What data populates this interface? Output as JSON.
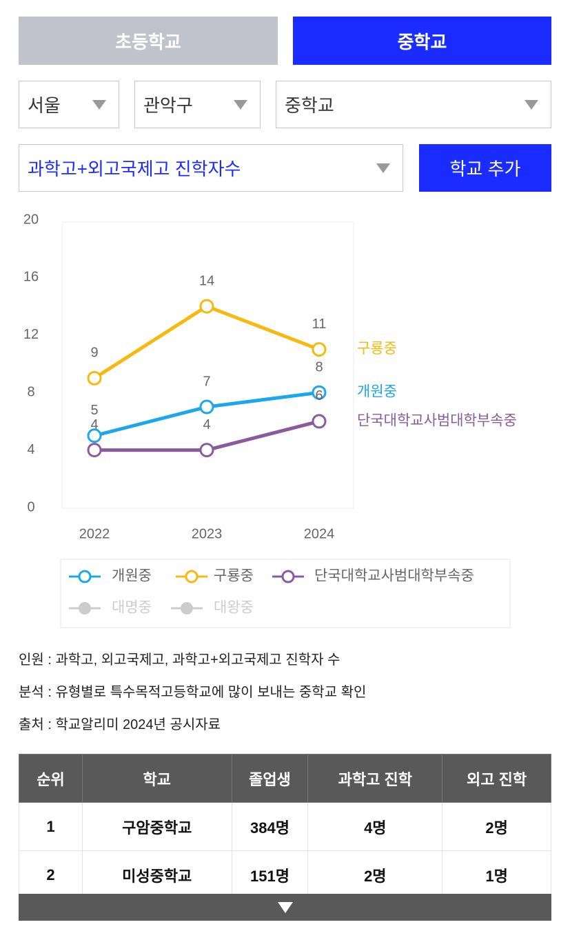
{
  "tabs": [
    "초등학교",
    "중학교"
  ],
  "filters": {
    "region": "서울",
    "district": "관악구",
    "level": "중학교",
    "metric": "과학고+외고국제고 진학자수",
    "add_button": "학교 추가"
  },
  "chart_data": {
    "type": "line",
    "categories": [
      "2022",
      "2023",
      "2024"
    ],
    "ylim": [
      0,
      20
    ],
    "yticks": [
      0,
      4,
      8,
      12,
      16,
      20
    ],
    "grid": false,
    "series": [
      {
        "name": "개원중",
        "color": "#1aa7ec",
        "values": [
          5,
          7,
          8
        ]
      },
      {
        "name": "구룡중",
        "color": "#f5b90f",
        "values": [
          9,
          14,
          11
        ]
      },
      {
        "name": "단국대학교사범대학부속중",
        "color": "#8a5a9e",
        "values": [
          4,
          4,
          6
        ]
      }
    ],
    "legend_order": [
      0,
      1,
      2
    ],
    "hidden_series": [
      {
        "name": "대명중"
      },
      {
        "name": "대왕중"
      }
    ],
    "legend": "bottom"
  },
  "notes": [
    "인원 : 과학고, 외고국제고, 과학고+외고국제고 진학자 수",
    "분석 : 유형별로 특수목적고등학교에 많이 보내는 중학교 확인",
    "출처 : 학교알리미 2024년 공시자료"
  ],
  "table": {
    "header": [
      "순위",
      "학교",
      "졸업생",
      "과학고 진학",
      "외고 진학"
    ],
    "rows": [
      [
        "1",
        "구암중학교",
        "384명",
        "4명",
        "2명"
      ],
      [
        "2",
        "미성중학교",
        "151명",
        "2명",
        "1명"
      ]
    ]
  }
}
